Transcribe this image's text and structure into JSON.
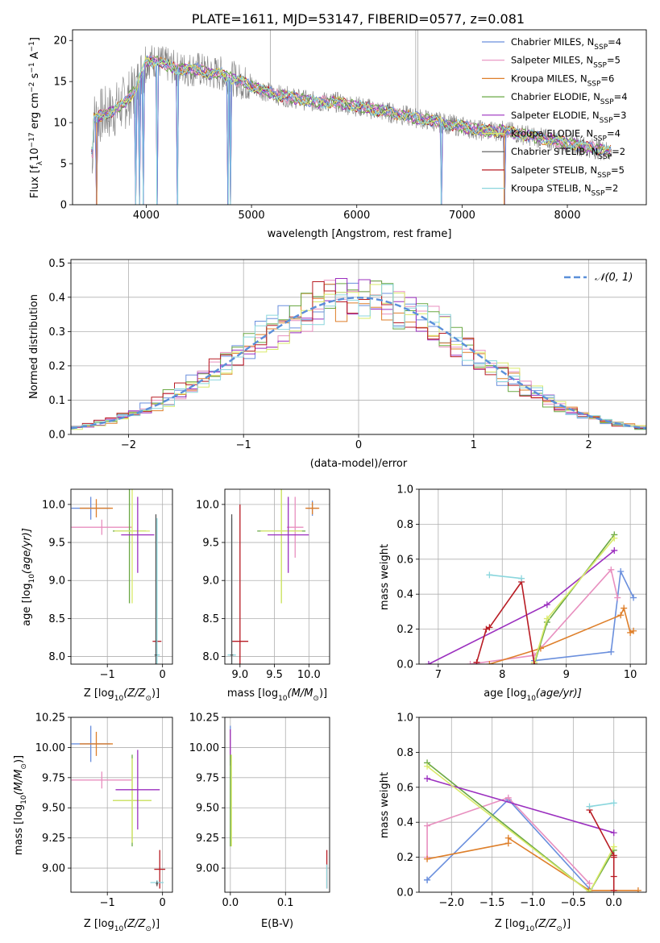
{
  "colors": {
    "Chabrier MILES": "#6a8fdd",
    "Salpeter MILES": "#e88fbf",
    "Kroupa MILES": "#de7f2a",
    "Chabrier ELODIE": "#6aa844",
    "Salpeter ELODIE": "#9b2fbf",
    "Kroupa ELODIE": "#d9ea6a",
    "Chabrier STELIB": "#555555",
    "Salpeter STELIB": "#b81c24",
    "Kroupa STELIB": "#8ad6dd",
    "normal": "#5b8fd9",
    "grid": "#b0b0b0"
  },
  "chart_data": [
    {
      "id": "spectrum",
      "type": "line",
      "title": "PLATE=1611, MJD=53147, FIBERID=0577, z=0.081",
      "xlabel": "wavelength [Angstrom, rest frame]",
      "ylabel": "Flux [f",
      "ylabel_sub": "λ",
      "ylabel_rest": "10",
      "ylabel_exp": "−17",
      "ylabel_tail": " erg cm",
      "ylabel_exp2": "−2",
      "ylabel_tail2": " s",
      "ylabel_exp3": "−1",
      "ylabel_tail3": " A",
      "ylabel_exp4": "−1",
      "ylabel_end": "]",
      "xlim": [
        3300,
        8750
      ],
      "ylim": [
        0,
        21.3
      ],
      "xticks": [
        4000,
        5000,
        6000,
        7000,
        8000
      ],
      "yticks": [
        0,
        5,
        10,
        15,
        20
      ],
      "grid": false,
      "legend_position": "top-right",
      "legend": [
        {
          "name": "Chabrier MILES",
          "nssp": "4"
        },
        {
          "name": "Salpeter MILES",
          "nssp": "5"
        },
        {
          "name": "Kroupa MILES",
          "nssp": "6"
        },
        {
          "name": "Chabrier ELODIE",
          "nssp": "4"
        },
        {
          "name": "Salpeter ELODIE",
          "nssp": "3"
        },
        {
          "name": "Kroupa ELODIE",
          "nssp": "4"
        },
        {
          "name": "Chabrier STELIB",
          "nssp": "2"
        },
        {
          "name": "Salpeter STELIB",
          "nssp": "5"
        },
        {
          "name": "Kroupa STELIB",
          "nssp": "2"
        }
      ],
      "nssp_label": "N",
      "nssp_sub": "SSP",
      "data_envelope": {
        "x": [
          3500,
          3600,
          3700,
          3800,
          3900,
          4000,
          4100,
          4200,
          4300,
          4400,
          4500,
          4600,
          4700,
          4800,
          4900,
          5000,
          5200,
          5400,
          5600,
          5800,
          6000,
          6200,
          6400,
          6600,
          6800,
          7000,
          7200,
          7400,
          7600,
          7800,
          8000,
          8200,
          8400
        ],
        "y": [
          10.5,
          11,
          11.5,
          12.5,
          14,
          17.5,
          17.5,
          17,
          16.5,
          16.5,
          16.5,
          16,
          16,
          15.5,
          15,
          14.5,
          13.5,
          13,
          12.5,
          12.5,
          12,
          11.5,
          11,
          10.5,
          10,
          9.5,
          9,
          9,
          8.5,
          8,
          7.5,
          7,
          6.5
        ]
      },
      "model_dips": [
        3530,
        3900,
        3935,
        3970,
        4100,
        4300,
        4780,
        4800,
        6800,
        7400
      ]
    },
    {
      "id": "residuals",
      "type": "histogram",
      "xlabel": "(data-model)/error",
      "ylabel": "Normed distribution",
      "xlim": [
        -2.5,
        2.5
      ],
      "ylim": [
        0,
        0.51
      ],
      "xticks": [
        -2,
        -1,
        0,
        1,
        2
      ],
      "yticks": [
        0.0,
        0.1,
        0.2,
        0.3,
        0.4,
        0.5
      ],
      "grid": true,
      "legend_position": "top-right",
      "legend": "𝒩(0, 1)",
      "bin_width": 0.1,
      "reference_curve": "standard normal pdf"
    },
    {
      "id": "age-vs-z",
      "type": "errorbar",
      "xlabel": "Z [log",
      "xlabel_sub": "10",
      "xlabel_rest": "(Z/Z",
      "xlabel_sub2": "⊙",
      "xlabel_end": ")]",
      "ylabel": "age  [log",
      "ylabel_sub": "10",
      "ylabel_rest": "(age/yr)]",
      "xlim": [
        -1.66,
        0.18
      ],
      "ylim": [
        7.9,
        10.2
      ],
      "xticks": [
        -1,
        0
      ],
      "yticks": [
        8.0,
        8.5,
        9.0,
        9.5,
        10.0
      ],
      "grid": true,
      "points": [
        {
          "series": "Chabrier MILES",
          "x": -1.3,
          "y": 9.95,
          "xerr": 0.35,
          "yerr": 0.15
        },
        {
          "series": "Kroupa MILES",
          "x": -1.2,
          "y": 9.95,
          "xerr": 0.3,
          "yerr": 0.12
        },
        {
          "series": "Salpeter MILES",
          "x": -1.1,
          "y": 9.7,
          "xerr": 0.55,
          "yerr": 0.1
        },
        {
          "series": "Chabrier ELODIE",
          "x": -0.6,
          "y": 9.65,
          "xerr": 0.3,
          "yerr": 0.95
        },
        {
          "series": "Kroupa ELODIE",
          "x": -0.55,
          "y": 9.65,
          "xerr": 0.32,
          "yerr": 0.95
        },
        {
          "series": "Salpeter ELODIE",
          "x": -0.45,
          "y": 9.6,
          "xerr": 0.3,
          "yerr": 0.5
        },
        {
          "series": "Salpeter STELIB",
          "x": -0.1,
          "y": 8.2,
          "xerr": 0.08,
          "yerr": 0.02
        },
        {
          "series": "Kroupa STELIB",
          "x": -0.1,
          "y": 8.02,
          "xerr": 0.05,
          "yerr": 1.8
        },
        {
          "series": "Chabrier STELIB",
          "x": -0.12,
          "y": 8.02,
          "xerr": 0.02,
          "yerr": 1.85
        }
      ]
    },
    {
      "id": "age-vs-mass",
      "type": "errorbar",
      "xlabel": "mass [log",
      "xlabel_sub": "10",
      "xlabel_rest": "(M/M",
      "xlabel_sub2": "⊙",
      "xlabel_end": ")]",
      "xlim": [
        8.78,
        10.3
      ],
      "ylim": [
        7.9,
        10.2
      ],
      "xticks": [
        9.0,
        9.5,
        10.0
      ],
      "yticks": [
        8.0,
        8.5,
        9.0,
        9.5,
        10.0
      ],
      "grid": true,
      "points": [
        {
          "series": "Chabrier MILES",
          "x": 10.05,
          "y": 9.95,
          "xerr": 0.08,
          "yerr": 0.1
        },
        {
          "series": "Kroupa MILES",
          "x": 10.05,
          "y": 9.95,
          "xerr": 0.1,
          "yerr": 0.08
        },
        {
          "series": "Salpeter MILES",
          "x": 9.8,
          "y": 9.7,
          "xerr": 0.12,
          "yerr": 0.4
        },
        {
          "series": "Chabrier ELODIE",
          "x": 9.6,
          "y": 9.65,
          "xerr": 0.35,
          "yerr": 0.95
        },
        {
          "series": "Kroupa ELODIE",
          "x": 9.6,
          "y": 9.65,
          "xerr": 0.3,
          "yerr": 0.95
        },
        {
          "series": "Salpeter ELODIE",
          "x": 9.7,
          "y": 9.6,
          "xerr": 0.3,
          "yerr": 0.5
        },
        {
          "series": "Salpeter STELIB",
          "x": 9.0,
          "y": 8.2,
          "xerr": 0.12,
          "yerr": 1.8
        },
        {
          "series": "Kroupa STELIB",
          "x": 8.88,
          "y": 8.02,
          "xerr": 0.06,
          "yerr": 1.8
        },
        {
          "series": "Chabrier STELIB",
          "x": 8.88,
          "y": 8.02,
          "xerr": 0.02,
          "yerr": 1.85
        }
      ]
    },
    {
      "id": "weight-vs-age",
      "type": "line",
      "xlabel": "age  [log",
      "xlabel_sub": "10",
      "xlabel_rest": "(age/yr)]",
      "ylabel": "mass weight",
      "xlim": [
        6.7,
        10.25
      ],
      "ylim": [
        0,
        1.0
      ],
      "xticks": [
        7,
        8,
        9,
        10
      ],
      "yticks": [
        0.0,
        0.2,
        0.4,
        0.6,
        0.8,
        1.0
      ],
      "grid": true,
      "series": [
        {
          "name": "Chabrier MILES",
          "x": [
            8.5,
            9.7,
            9.85,
            10.05
          ],
          "y": [
            0.02,
            0.07,
            0.53,
            0.38
          ]
        },
        {
          "name": "Salpeter MILES",
          "x": [
            7.5,
            8.5,
            9.7,
            9.8
          ],
          "y": [
            0.0,
            0.05,
            0.54,
            0.38
          ]
        },
        {
          "name": "Kroupa MILES",
          "x": [
            7.8,
            8.6,
            9.85,
            9.9,
            10.0,
            10.05
          ],
          "y": [
            0.0,
            0.09,
            0.28,
            0.32,
            0.18,
            0.19
          ]
        },
        {
          "name": "Chabrier ELODIE",
          "x": [
            8.5,
            8.7,
            9.75
          ],
          "y": [
            0.0,
            0.24,
            0.74
          ]
        },
        {
          "name": "Salpeter ELODIE",
          "x": [
            6.85,
            8.7,
            9.75
          ],
          "y": [
            0.0,
            0.34,
            0.65
          ]
        },
        {
          "name": "Kroupa ELODIE",
          "x": [
            8.5,
            8.7,
            9.75
          ],
          "y": [
            0.01,
            0.26,
            0.72
          ]
        },
        {
          "name": "Salpeter STELIB",
          "x": [
            7.6,
            7.75,
            7.8,
            8.3,
            8.5
          ],
          "y": [
            0.01,
            0.2,
            0.21,
            0.47,
            0.0
          ]
        },
        {
          "name": "Kroupa STELIB",
          "x": [
            7.8,
            8.3
          ],
          "y": [
            0.51,
            0.49
          ]
        }
      ]
    },
    {
      "id": "mass-vs-z",
      "type": "errorbar",
      "xlabel": "Z [log",
      "xlabel_sub": "10",
      "xlabel_rest": "(Z/Z",
      "xlabel_sub2": "⊙",
      "xlabel_end": ")]",
      "ylabel": "mass [log",
      "ylabel_sub": "10",
      "ylabel_rest": "(M/M",
      "ylabel_sub2": "⊙",
      "ylabel_end": ")]",
      "xlim": [
        -1.66,
        0.18
      ],
      "ylim": [
        8.8,
        10.25
      ],
      "xticks": [
        -1,
        0
      ],
      "yticks": [
        9.0,
        9.25,
        9.5,
        9.75,
        10.0,
        10.25
      ],
      "grid": true,
      "points": [
        {
          "series": "Chabrier MILES",
          "x": -1.3,
          "y": 10.03,
          "xerr": 0.35,
          "yerr": 0.15
        },
        {
          "series": "Kroupa MILES",
          "x": -1.2,
          "y": 10.03,
          "xerr": 0.3,
          "yerr": 0.1
        },
        {
          "series": "Salpeter MILES",
          "x": -1.1,
          "y": 9.73,
          "xerr": 0.55,
          "yerr": 0.07
        },
        {
          "series": "Chabrier ELODIE",
          "x": -0.55,
          "y": 9.56,
          "xerr": 0.35,
          "yerr": 0.38
        },
        {
          "series": "Kroupa ELODIE",
          "x": -0.55,
          "y": 9.56,
          "xerr": 0.35,
          "yerr": 0.35
        },
        {
          "series": "Salpeter ELODIE",
          "x": -0.45,
          "y": 9.65,
          "xerr": 0.4,
          "yerr": 0.33
        },
        {
          "series": "Salpeter STELIB",
          "x": -0.05,
          "y": 8.99,
          "xerr": 0.1,
          "yerr": 0.16
        },
        {
          "series": "Kroupa STELIB",
          "x": -0.1,
          "y": 8.88,
          "xerr": 0.12,
          "yerr": 0.02
        },
        {
          "series": "Chabrier STELIB",
          "x": -0.1,
          "y": 8.87,
          "xerr": 0.02,
          "yerr": 0.02
        }
      ]
    },
    {
      "id": "mass-vs-ebv",
      "type": "errorbar",
      "xlabel": "E(B-V)",
      "xlim": [
        -0.01,
        0.18
      ],
      "ylim": [
        8.8,
        10.25
      ],
      "xticks": [
        0.0,
        0.1
      ],
      "yticks": [
        9.0,
        9.25,
        9.5,
        9.75,
        10.0,
        10.25
      ],
      "grid": true,
      "points": [
        {
          "series": "Chabrier MILES",
          "x": 0.0,
          "y": 10.03,
          "xerr": 0.0,
          "yerr": 0.15
        },
        {
          "series": "Kroupa MILES",
          "x": 0.0,
          "y": 10.03,
          "xerr": 0.0,
          "yerr": 0.12
        },
        {
          "series": "Salpeter ELODIE",
          "x": 0.0,
          "y": 10.0,
          "xerr": 0.0,
          "yerr": 0.15
        },
        {
          "series": "Kroupa ELODIE",
          "x": 0.002,
          "y": 9.56,
          "xerr": 0.0,
          "yerr": 0.38
        },
        {
          "series": "Chabrier ELODIE",
          "x": 0.0,
          "y": 9.56,
          "xerr": 0.0,
          "yerr": 0.38
        },
        {
          "series": "Salpeter STELIB",
          "x": 0.175,
          "y": 8.99,
          "xerr": 0.0,
          "yerr": 0.16
        },
        {
          "series": "Kroupa STELIB",
          "x": 0.175,
          "y": 8.93,
          "xerr": 0.0,
          "yerr": 0.1
        }
      ]
    },
    {
      "id": "weight-vs-z",
      "type": "line",
      "xlabel": "Z [log",
      "xlabel_sub": "10",
      "xlabel_rest": "(Z/Z",
      "xlabel_sub2": "⊙",
      "xlabel_end": ")]",
      "ylabel": "mass weight",
      "xlim": [
        -2.4,
        0.4
      ],
      "ylim": [
        0,
        1.0
      ],
      "xticks": [
        -2.0,
        -1.5,
        -1.0,
        -0.5,
        0.0
      ],
      "yticks": [
        0.0,
        0.2,
        0.4,
        0.6,
        0.8,
        1.0
      ],
      "grid": true,
      "series": [
        {
          "name": "Chabrier MILES",
          "x": [
            -2.3,
            -2.3,
            -1.3,
            -0.3
          ],
          "y": [
            0.07,
            0.07,
            0.53,
            0.02
          ]
        },
        {
          "name": "Salpeter MILES",
          "x": [
            -2.3,
            -2.3,
            -1.3,
            -0.3
          ],
          "y": [
            0.2,
            0.38,
            0.54,
            0.05
          ]
        },
        {
          "name": "Kroupa MILES",
          "x": [
            -2.3,
            -1.3,
            -1.3,
            -0.3,
            0.0,
            0.3
          ],
          "y": [
            0.19,
            0.28,
            0.31,
            0.01,
            0.01,
            0.01
          ]
        },
        {
          "name": "Chabrier ELODIE",
          "x": [
            -2.3,
            -0.3,
            0.0
          ],
          "y": [
            0.74,
            0.0,
            0.24
          ]
        },
        {
          "name": "Salpeter ELODIE",
          "x": [
            -2.3,
            0.0
          ],
          "y": [
            0.65,
            0.34
          ]
        },
        {
          "name": "Kroupa ELODIE",
          "x": [
            -2.3,
            -0.3,
            0.0
          ],
          "y": [
            0.72,
            0.0,
            0.26
          ]
        },
        {
          "name": "Salpeter STELIB",
          "x": [
            -0.3,
            0.0,
            0.0,
            0.0,
            0.0
          ],
          "y": [
            0.47,
            0.21,
            0.2,
            0.09,
            0.01
          ]
        },
        {
          "name": "Kroupa STELIB",
          "x": [
            -0.3,
            0.0
          ],
          "y": [
            0.49,
            0.51
          ]
        }
      ]
    }
  ]
}
